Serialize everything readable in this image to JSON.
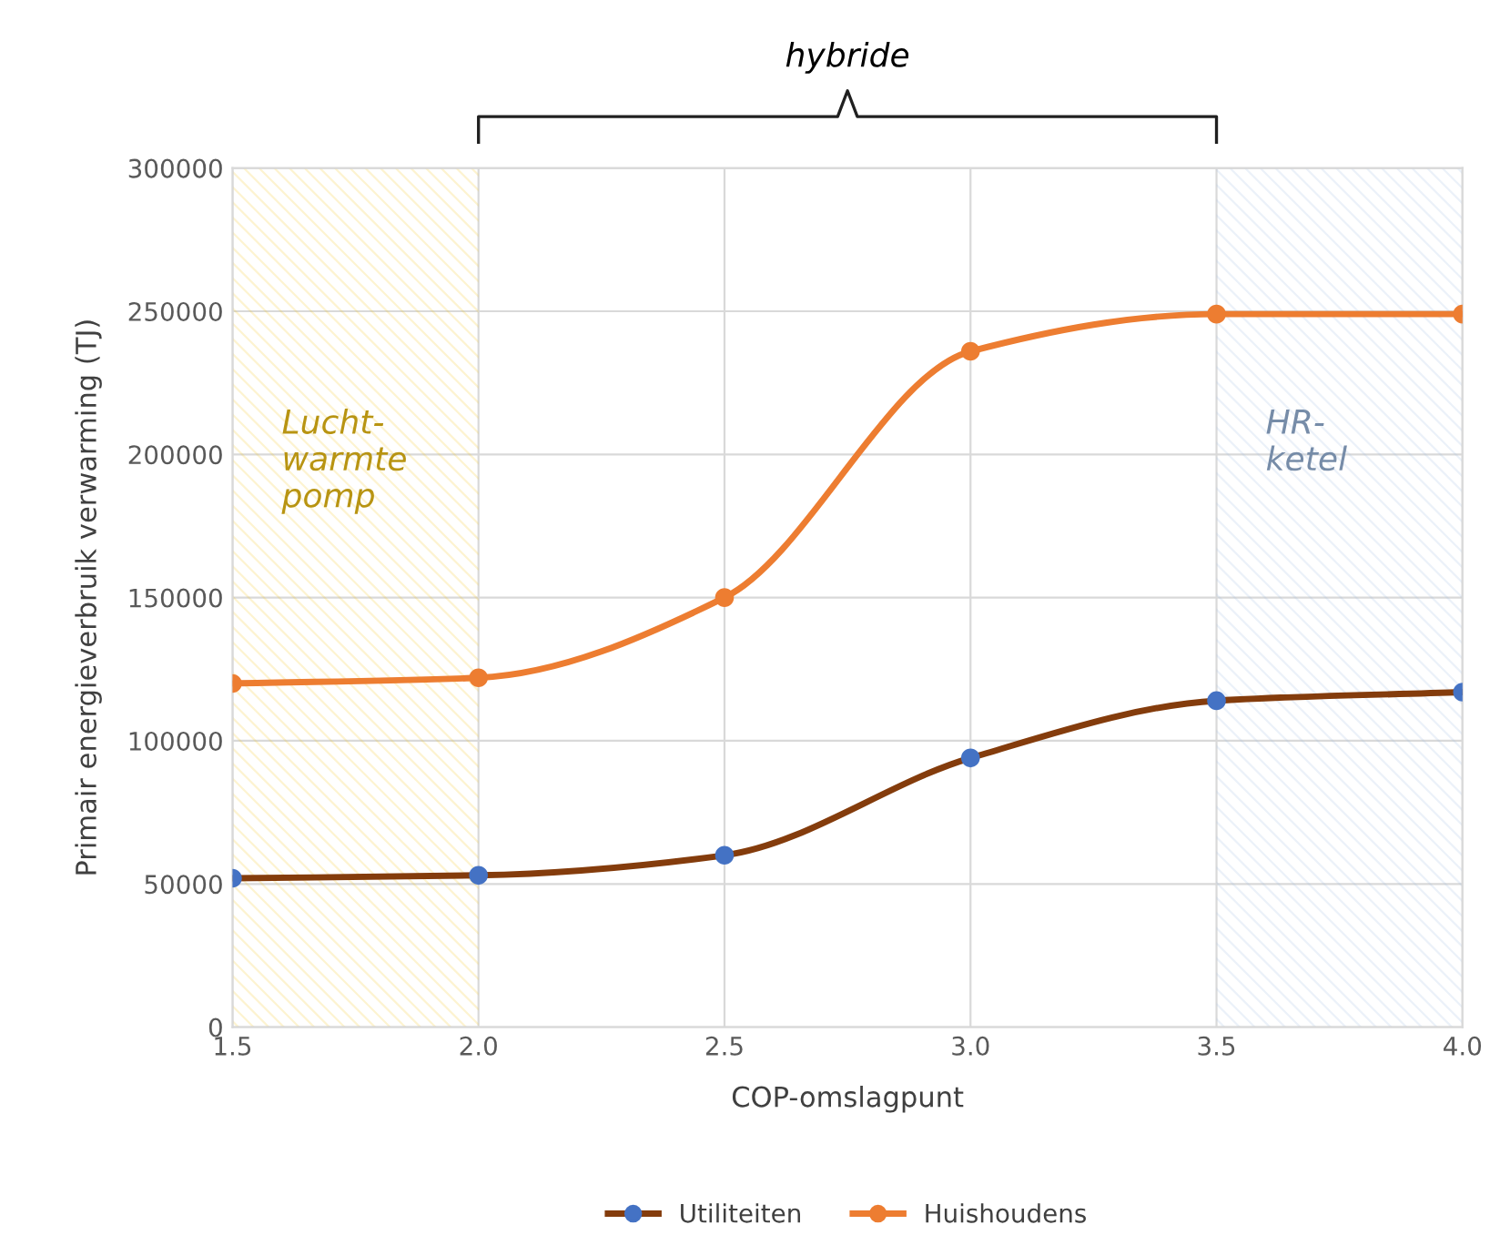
{
  "chart_data": {
    "type": "line",
    "xlabel": "COP-omslagpunt",
    "ylabel": "Primair energieverbruik verwarming (TJ)",
    "x": [
      1.5,
      2.0,
      2.5,
      3.0,
      3.5,
      4.0
    ],
    "series": [
      {
        "name": "Utiliteiten",
        "color": "#843c0c",
        "colors": [
          "#4472c4",
          "#4472c4",
          "#4472c4",
          "#4472c4",
          "#4472c4",
          "#4472c4"
        ],
        "values": [
          52000,
          53000,
          60000,
          94000,
          114000,
          117000
        ]
      },
      {
        "name": "Huishoudens",
        "color": "#ed7d31",
        "values": [
          120000,
          122000,
          150000,
          236000,
          249000,
          249000
        ]
      }
    ],
    "xlim": [
      1.5,
      4.0
    ],
    "xticks": [
      {
        "value": 1.5,
        "label": "1.5"
      },
      {
        "value": 2.0,
        "label": "2.0"
      },
      {
        "value": 2.5,
        "label": "2.5"
      },
      {
        "value": 3.0,
        "label": "3.0"
      },
      {
        "value": 3.5,
        "label": "3.5"
      },
      {
        "value": 4.0,
        "label": "4.0"
      }
    ],
    "ylim": [
      0,
      300000
    ],
    "yticks": [
      0,
      50000,
      100000,
      150000,
      200000,
      250000,
      300000
    ],
    "bands": [
      {
        "axis": "x",
        "from": 1.5,
        "to": 2.0,
        "label": "Lucht-\nwarmte\npomp",
        "color": "#f5c518"
      },
      {
        "axis": "x",
        "from": 3.5,
        "to": 4.0,
        "label": "HR-\nketel",
        "color": "#9dbbe0"
      }
    ],
    "annotations": [
      "hybride"
    ],
    "grid": true,
    "legend": "bottom",
    "marker": "circle",
    "line_style": "solid"
  }
}
